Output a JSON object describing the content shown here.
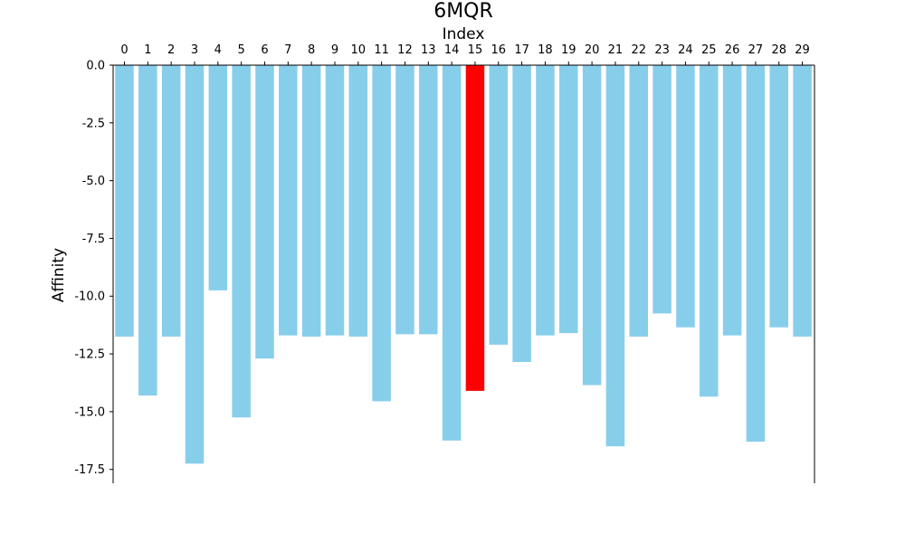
{
  "chart_data": {
    "type": "bar",
    "title": "6MQR",
    "xlabel": "Index",
    "ylabel": "Affinity",
    "x_axis_position": "top",
    "categories": [
      "0",
      "1",
      "2",
      "3",
      "4",
      "5",
      "6",
      "7",
      "8",
      "9",
      "10",
      "11",
      "12",
      "13",
      "14",
      "15",
      "16",
      "17",
      "18",
      "19",
      "20",
      "21",
      "22",
      "23",
      "24",
      "25",
      "26",
      "27",
      "28",
      "29"
    ],
    "values": [
      -11.75,
      -14.3,
      -11.75,
      -17.25,
      -9.75,
      -15.25,
      -12.7,
      -11.7,
      -11.75,
      -11.7,
      -11.75,
      -14.55,
      -11.65,
      -11.65,
      -16.25,
      -14.1,
      -12.1,
      -12.85,
      -11.7,
      -11.6,
      -13.85,
      -16.5,
      -11.75,
      -10.75,
      -11.35,
      -14.35,
      -11.7,
      -16.3,
      -11.35,
      -11.75
    ],
    "ylim": [
      -18.1,
      0
    ],
    "yticks": [
      0.0,
      -2.5,
      -5.0,
      -7.5,
      -10.0,
      -12.5,
      -15.0,
      -17.5
    ],
    "ytick_labels": [
      "0.0",
      "-2.5",
      "-5.0",
      "-7.5",
      "-10.0",
      "-12.5",
      "-15.0",
      "-17.5"
    ],
    "default_color": "#87ceeb",
    "highlight_index": 15,
    "highlight_color": "#ff0000",
    "grid": false,
    "legend": "none"
  }
}
